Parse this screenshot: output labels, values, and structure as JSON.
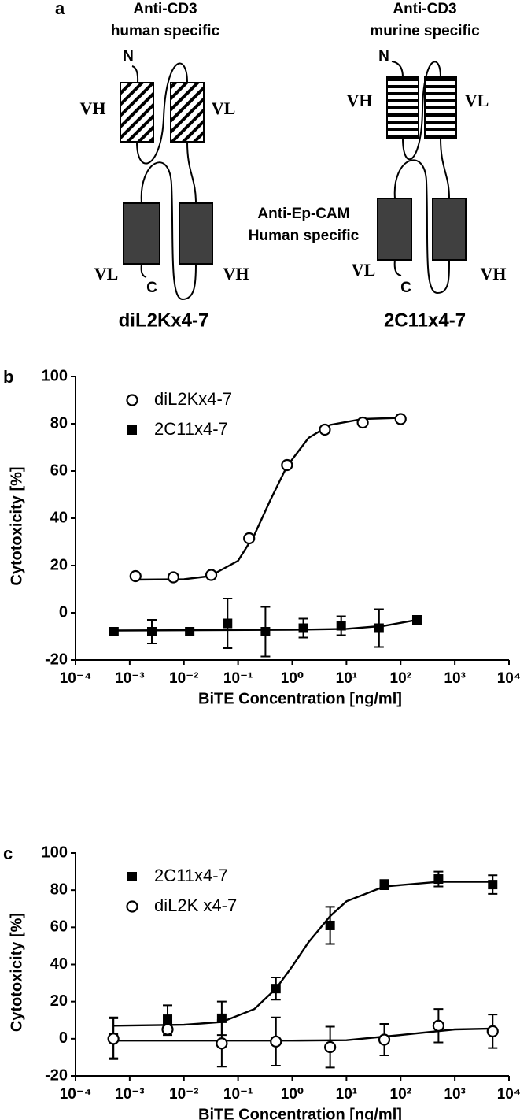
{
  "diagram": {
    "panel_label": "a",
    "constructs": [
      {
        "title": [
          "Anti-CD3",
          "human specific"
        ],
        "n_label": "N",
        "c_label": "C",
        "top_labels": [
          "VH",
          "VL"
        ],
        "bottom_labels": [
          "VL",
          "VH"
        ],
        "name": "diL2Kx4-7"
      },
      {
        "title": [
          "Anti-CD3",
          "murine specific"
        ],
        "n_label": "N",
        "c_label": "C",
        "top_labels": [
          "VH",
          "VL"
        ],
        "bottom_labels": [
          "VL",
          "VH"
        ],
        "name": "2C11x4-7"
      }
    ],
    "middle_label": [
      "Anti-Ep-CAM",
      "Human specific"
    ]
  },
  "chart_data": [
    {
      "type": "scatter",
      "panel_label": "b",
      "xlabel": "BiTE Concentration [ng/ml]",
      "ylabel": "Cytotoxicity [%]",
      "xscale": "log",
      "xlim": [
        0.0001,
        10000
      ],
      "xticks": [
        {
          "value": 0.0001,
          "label": "10⁻⁴"
        },
        {
          "value": 0.001,
          "label": "10⁻³"
        },
        {
          "value": 0.01,
          "label": "10⁻²"
        },
        {
          "value": 0.1,
          "label": "10⁻¹"
        },
        {
          "value": 1,
          "label": "10⁰"
        },
        {
          "value": 10,
          "label": "10¹"
        },
        {
          "value": 100,
          "label": "10²"
        },
        {
          "value": 1000,
          "label": "10³"
        },
        {
          "value": 10000,
          "label": "10⁴"
        }
      ],
      "ylim": [
        -20,
        100
      ],
      "yticks": [
        -20,
        0,
        20,
        40,
        60,
        80,
        100
      ],
      "legend": "upper left",
      "series": [
        {
          "name": "diL2Kx4-7",
          "color": "#000000",
          "marker": "circle-open",
          "x": [
            0.00128,
            0.0064,
            0.032,
            0.16,
            0.8,
            4,
            20,
            100
          ],
          "values": [
            15.5,
            15,
            16,
            31.5,
            62.5,
            77.5,
            80.5,
            82
          ],
          "fit": {
            "x": [
              0.0012,
              0.01,
              0.03,
              0.1,
              0.2,
              0.4,
              0.8,
              2,
              5,
              20,
              100
            ],
            "y": [
              14,
              14.2,
              15.5,
              22,
              33,
              48,
              62,
              74,
              79.5,
              82,
              82.5
            ]
          }
        },
        {
          "name": "2C11x4-7",
          "color": "#000000",
          "marker": "square",
          "x": [
            0.000512,
            0.00256,
            0.0128,
            0.064,
            0.32,
            1.6,
            8,
            40,
            200
          ],
          "values": [
            -8,
            -8,
            -8,
            -4.5,
            -8,
            -6.5,
            -5.5,
            -6.5,
            -3
          ],
          "errors": [
            null,
            5,
            null,
            10.5,
            10.5,
            4,
            4,
            8,
            null
          ],
          "fit": {
            "x": [
              0.0005,
              1,
              10,
              50,
              200
            ],
            "y": [
              -7.5,
              -7.2,
              -6.8,
              -5.5,
              -3
            ]
          }
        }
      ]
    },
    {
      "type": "scatter",
      "panel_label": "c",
      "xlabel": "BiTE Concentration [ng/ml]",
      "ylabel": "Cytotoxicity [%]",
      "xscale": "log",
      "xlim": [
        0.0001,
        10000
      ],
      "xticks": [
        {
          "value": 0.0001,
          "label": "10⁻⁴"
        },
        {
          "value": 0.001,
          "label": "10⁻³"
        },
        {
          "value": 0.01,
          "label": "10⁻²"
        },
        {
          "value": 0.1,
          "label": "10⁻¹"
        },
        {
          "value": 1,
          "label": "10⁰"
        },
        {
          "value": 10,
          "label": "10¹"
        },
        {
          "value": 100,
          "label": "10²"
        },
        {
          "value": 1000,
          "label": "10³"
        },
        {
          "value": 10000,
          "label": "10⁴"
        }
      ],
      "ylim": [
        -20,
        100
      ],
      "yticks": [
        -20,
        0,
        20,
        40,
        60,
        80,
        100
      ],
      "legend": "upper left",
      "series": [
        {
          "name": "2C11x4-7",
          "color": "#000000",
          "marker": "square",
          "x": [
            0.0005,
            0.005,
            0.05,
            0.5,
            5,
            50,
            500,
            5000
          ],
          "values": [
            0.5,
            10.5,
            11,
            27,
            61,
            83,
            86,
            83
          ],
          "errors": [
            11,
            7.5,
            9,
            6,
            10,
            2.5,
            4,
            5
          ],
          "fit": {
            "x": [
              0.0005,
              0.01,
              0.05,
              0.2,
              0.5,
              1,
              2,
              5,
              10,
              50,
              500,
              5000
            ],
            "y": [
              7,
              7.5,
              9,
              16,
              27,
              39,
              52,
              66,
              74,
              82,
              84.5,
              84.5
            ]
          }
        },
        {
          "name": "diL2K x4-7",
          "color": "#000000",
          "marker": "circle-open",
          "x": [
            0.0005,
            0.005,
            0.05,
            0.5,
            5,
            50,
            500,
            5000
          ],
          "values": [
            0,
            5,
            -2.5,
            -1.5,
            -4.5,
            -0.5,
            7,
            4
          ],
          "errors": [
            11,
            3,
            12.5,
            13,
            11,
            8.5,
            9,
            9
          ],
          "fit": {
            "x": [
              0.0005,
              1,
              10,
              100,
              1000,
              5000
            ],
            "y": [
              -1,
              -1,
              -0.8,
              2,
              5,
              5.5
            ]
          }
        }
      ]
    }
  ]
}
